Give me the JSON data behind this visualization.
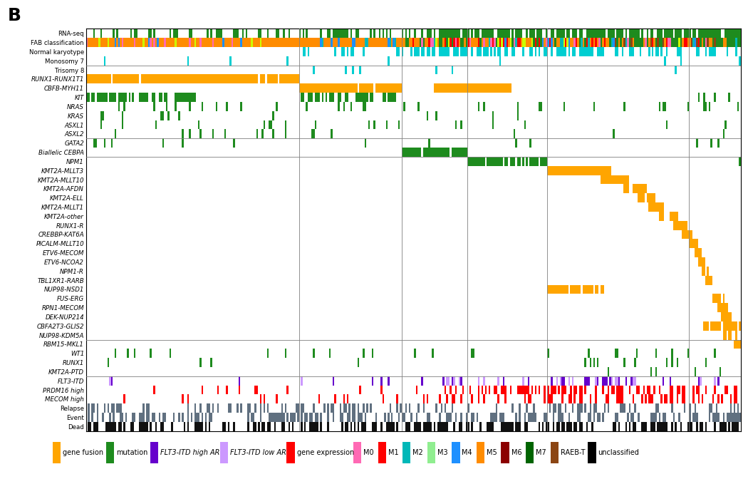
{
  "title": "B",
  "n_patients": 369,
  "row_labels": [
    "RNA-seq",
    "FAB classification",
    "Normal karyotype",
    "Monosomy 7",
    "Trisomy 8",
    "RUNX1-RUNX1T1",
    "CBFB-MYH11",
    "KIT",
    "NRAS",
    "KRAS",
    "ASXL1",
    "ASXL2",
    "GATA2",
    "Biallelic CEBPA",
    "NPM1",
    "KMT2A-MLLT3",
    "KMT2A-MLLT10",
    "KMT2A-AFDN",
    "KMT2A-ELL",
    "KMT2A-MLLT1",
    "KMT2A-other",
    "RUNX1-R",
    "CREBBP-KAT6A",
    "PICALM-MLLT10",
    "ETV6-MECOM",
    "ETV6-NCOA2",
    "NPM1-R",
    "TBL1XR1-RARB",
    "NUP98-NSD1",
    "FUS-ERG",
    "RPN1-MECOM",
    "DEK-NUP214",
    "CBFA2T3-GLIS2",
    "NUP98-KDM5A",
    "RBM15-MKL1",
    "WT1",
    "RUNX1",
    "KMT2A-PTD",
    "FLT3-ITD",
    "PRDM16 high",
    "MECOM high",
    "Relapse",
    "Event",
    "Dead"
  ],
  "italic_rows": [
    "RUNX1-RUNX1T1",
    "CBFB-MYH11",
    "KIT",
    "NRAS",
    "KRAS",
    "ASXL1",
    "ASXL2",
    "GATA2",
    "Biallelic CEBPA",
    "NPM1",
    "KMT2A-MLLT3",
    "KMT2A-MLLT10",
    "KMT2A-AFDN",
    "KMT2A-ELL",
    "KMT2A-MLLT1",
    "KMT2A-other",
    "RUNX1-R",
    "CREBBP-KAT6A",
    "PICALM-MLLT10",
    "ETV6-MECOM",
    "ETV6-NCOA2",
    "NPM1-R",
    "TBL1XR1-RARB",
    "NUP98-NSD1",
    "FUS-ERG",
    "RPN1-MECOM",
    "DEK-NUP214",
    "CBFA2T3-GLIS2",
    "NUP98-KDM5A",
    "RBM15-MKL1",
    "WT1",
    "RUNX1",
    "KMT2A-PTD",
    "FLT3-ITD",
    "PRDM16 high",
    "MECOM high"
  ],
  "colors": {
    "gene_fusion": "#FFA500",
    "mutation": "#1E8B1E",
    "FLT3_high": "#6600CC",
    "FLT3_low": "#CC99FF",
    "gene_expression": "#FF0000",
    "M0": "#FF69B4",
    "M1": "#FF0000",
    "M2": "#00B8B8",
    "M3": "#90EE90",
    "M4": "#1E90FF",
    "M5": "#FF8C00",
    "M6": "#8B0000",
    "M7": "#006400",
    "RAEB_T": "#8B4513",
    "unclassified": "#000000",
    "RNA_seq": "#1E8B1E",
    "normal_karyotype": "#00CED1",
    "relapse": "#607080",
    "event": "#607080",
    "dead": "#111111",
    "trisomy8": "#00CED1",
    "monosomy7": "#00CED1",
    "yellow_green": "#CCFF00",
    "pink": "#FF69B4"
  },
  "legend_items": [
    {
      "label": "gene fusion",
      "color": "#FFA500",
      "italic": false
    },
    {
      "label": "mutation",
      "color": "#1E8B1E",
      "italic": false
    },
    {
      "label": "FLT3-ITD high AR",
      "color": "#6600CC",
      "italic": true
    },
    {
      "label": "FLT3-ITD low AR",
      "color": "#CC99FF",
      "italic": true
    },
    {
      "label": "gene expression",
      "color": "#FF0000",
      "italic": false
    },
    {
      "label": "M0",
      "color": "#FF69B4",
      "italic": false
    },
    {
      "label": "M1",
      "color": "#FF0000",
      "italic": false
    },
    {
      "label": "M2",
      "color": "#00B8B8",
      "italic": false
    },
    {
      "label": "M3",
      "color": "#90EE90",
      "italic": false
    },
    {
      "label": "M4",
      "color": "#1E90FF",
      "italic": false
    },
    {
      "label": "M5",
      "color": "#FF8C00",
      "italic": false
    },
    {
      "label": "M6",
      "color": "#8B0000",
      "italic": false
    },
    {
      "label": "M7",
      "color": "#006400",
      "italic": false
    },
    {
      "label": "RAEB-T",
      "color": "#8B4513",
      "italic": false
    },
    {
      "label": "unclassified",
      "color": "#000000",
      "italic": false
    }
  ],
  "figsize": [
    10.5,
    6.72
  ],
  "dpi": 100
}
